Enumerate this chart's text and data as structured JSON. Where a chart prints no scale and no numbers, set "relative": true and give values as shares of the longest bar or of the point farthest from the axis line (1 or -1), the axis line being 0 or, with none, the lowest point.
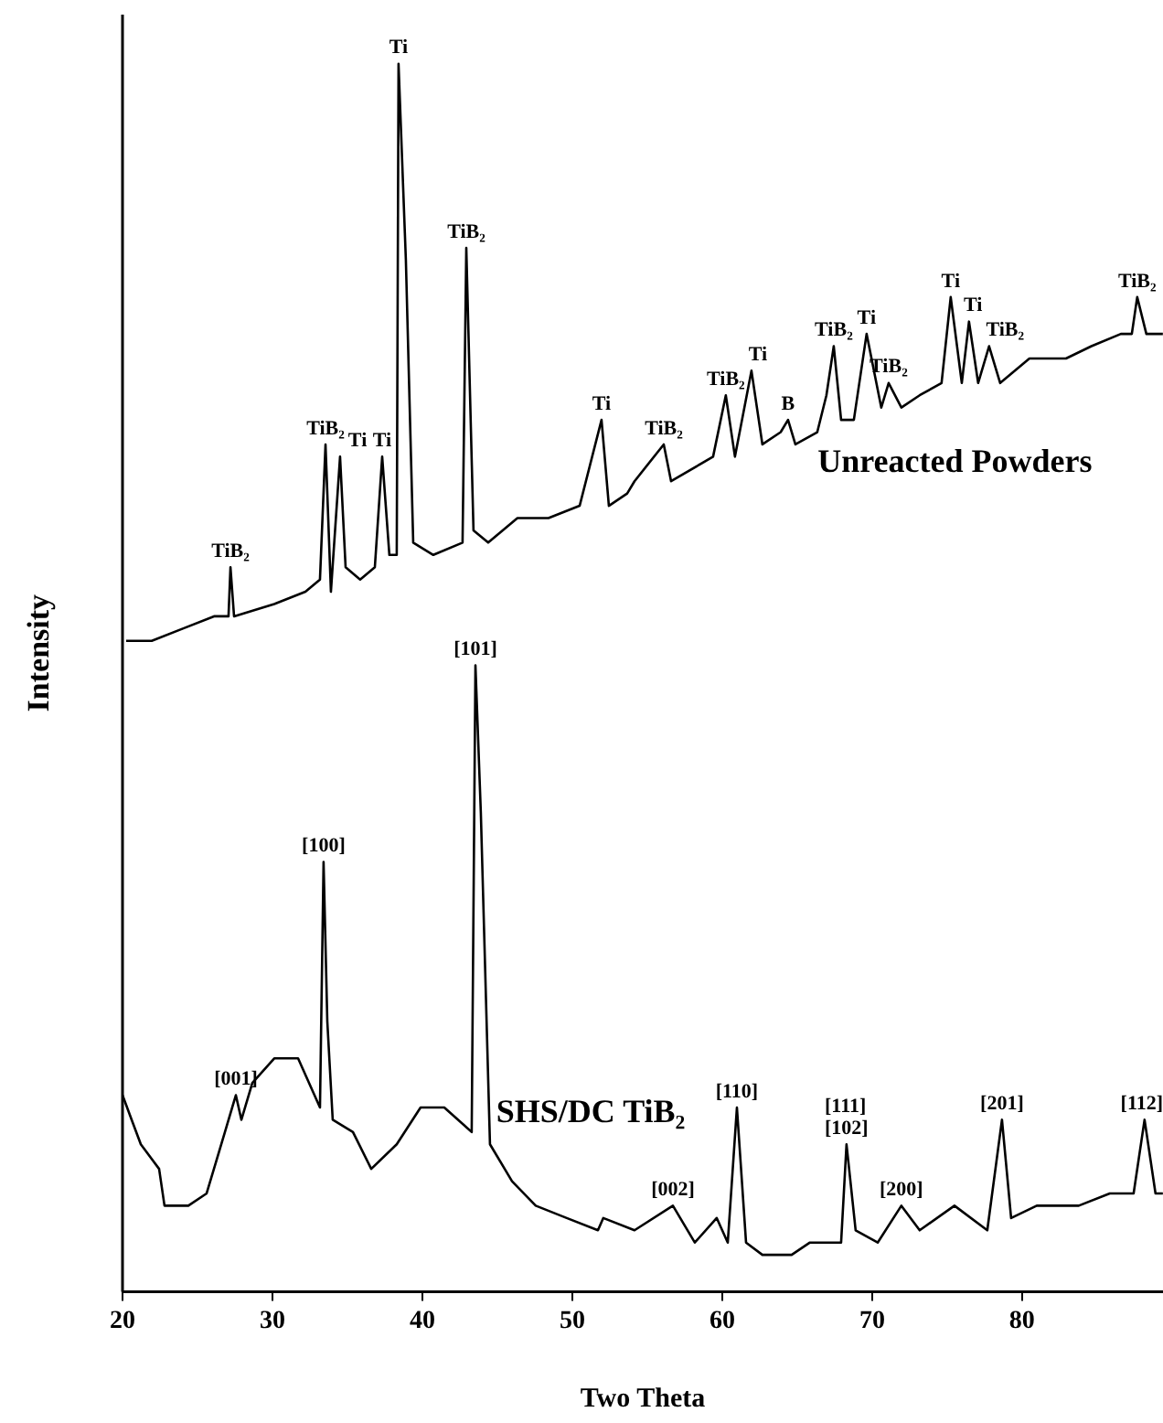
{
  "chart_data": {
    "type": "line",
    "xlabel": "Two Theta",
    "ylabel": "Intensity",
    "relative": true,
    "tick_labels": "x",
    "xlim": [
      20,
      89.4
    ],
    "xticks": [
      20,
      30,
      40,
      50,
      60,
      70,
      80
    ],
    "series": [
      {
        "name": "Unreacted Powders",
        "color": "#000000",
        "x": [
          20.24,
          21.95,
          24.02,
          26.1,
          27.07,
          27.2,
          27.44,
          30.12,
          32.2,
          33.17,
          33.54,
          33.9,
          34.51,
          34.88,
          35.85,
          36.83,
          37.32,
          37.8,
          38.29,
          38.41,
          38.9,
          39.39,
          40.73,
          42.68,
          42.93,
          43.41,
          44.39,
          46.34,
          48.41,
          50.49,
          51.95,
          52.44,
          53.66,
          54.15,
          56.1,
          56.59,
          59.39,
          60.24,
          60.85,
          61.95,
          62.68,
          63.9,
          64.39,
          64.88,
          66.34,
          66.95,
          67.44,
          67.93,
          68.78,
          69.63,
          70.61,
          71.1,
          71.95,
          73.17,
          74.63,
          75.24,
          75.98,
          76.46,
          77.07,
          77.8,
          78.54,
          80.49,
          82.93,
          84.63,
          86.59,
          87.32,
          87.68,
          88.29,
          89.39
        ],
        "values": [
          0.53,
          0.53,
          0.54,
          0.55,
          0.55,
          0.59,
          0.55,
          0.56,
          0.57,
          0.58,
          0.69,
          0.57,
          0.68,
          0.59,
          0.58,
          0.59,
          0.68,
          0.6,
          0.6,
          1.0,
          0.84,
          0.61,
          0.6,
          0.61,
          0.85,
          0.62,
          0.61,
          0.63,
          0.63,
          0.64,
          0.71,
          0.64,
          0.65,
          0.66,
          0.69,
          0.66,
          0.68,
          0.73,
          0.68,
          0.75,
          0.69,
          0.7,
          0.71,
          0.69,
          0.7,
          0.73,
          0.77,
          0.71,
          0.71,
          0.78,
          0.72,
          0.74,
          0.72,
          0.73,
          0.74,
          0.81,
          0.74,
          0.79,
          0.74,
          0.77,
          0.74,
          0.76,
          0.76,
          0.77,
          0.78,
          0.78,
          0.81,
          0.78,
          0.78
        ]
      },
      {
        "name": "SHS/DC TiB₂",
        "color": "#000000",
        "x": [
          20,
          20.61,
          21.22,
          22.44,
          22.8,
          24.39,
          25.61,
          26.83,
          27.56,
          27.93,
          28.66,
          30.12,
          31.71,
          33.17,
          33.41,
          33.66,
          34.02,
          35.37,
          36.59,
          38.29,
          39.88,
          41.46,
          43.29,
          43.54,
          43.9,
          44.51,
          45.98,
          47.56,
          49.63,
          51.71,
          52.07,
          54.15,
          56.71,
          58.17,
          59.63,
          60.37,
          60.98,
          61.59,
          62.68,
          64.63,
          65.85,
          67.93,
          68.29,
          68.9,
          70.37,
          71.95,
          73.17,
          75.49,
          77.68,
          78.66,
          79.27,
          80.98,
          83.78,
          85.85,
          87.44,
          88.17,
          88.9,
          89.39
        ],
        "values": [
          0.16,
          0.14,
          0.12,
          0.1,
          0.07,
          0.07,
          0.08,
          0.13,
          0.16,
          0.14,
          0.17,
          0.19,
          0.19,
          0.15,
          0.35,
          0.22,
          0.14,
          0.13,
          0.1,
          0.12,
          0.15,
          0.15,
          0.13,
          0.51,
          0.39,
          0.12,
          0.09,
          0.07,
          0.06,
          0.05,
          0.06,
          0.05,
          0.07,
          0.04,
          0.06,
          0.04,
          0.15,
          0.04,
          0.03,
          0.03,
          0.04,
          0.04,
          0.12,
          0.05,
          0.04,
          0.07,
          0.05,
          0.07,
          0.05,
          0.14,
          0.06,
          0.07,
          0.07,
          0.08,
          0.08,
          0.14,
          0.08,
          0.08
        ]
      }
    ],
    "annotations": [
      {
        "text": "TiB₂",
        "x": 27.2,
        "y": 0.59
      },
      {
        "text": "TiB₂",
        "x": 33.54,
        "y": 0.69
      },
      {
        "text": "Ti",
        "x": 34.51,
        "y": 0.68
      },
      {
        "text": "Ti",
        "x": 37.32,
        "y": 0.68
      },
      {
        "text": "Ti",
        "x": 38.41,
        "y": 1.0
      },
      {
        "text": "TiB₂",
        "x": 42.93,
        "y": 0.85
      },
      {
        "text": "Ti",
        "x": 51.95,
        "y": 0.71
      },
      {
        "text": "TiB₂",
        "x": 56.1,
        "y": 0.69
      },
      {
        "text": "TiB₂",
        "x": 60.24,
        "y": 0.73
      },
      {
        "text": "Ti",
        "x": 61.95,
        "y": 0.75
      },
      {
        "text": "B",
        "x": 64.39,
        "y": 0.71
      },
      {
        "text": "TiB₂",
        "x": 67.44,
        "y": 0.77
      },
      {
        "text": "Ti",
        "x": 69.63,
        "y": 0.78
      },
      {
        "text": "TiB₂",
        "x": 71.1,
        "y": 0.74
      },
      {
        "text": "Ti",
        "x": 75.24,
        "y": 0.81
      },
      {
        "text": "Ti",
        "x": 76.46,
        "y": 0.79
      },
      {
        "text": "TiB₂",
        "x": 77.8,
        "y": 0.77
      },
      {
        "text": "TiB₂",
        "x": 87.68,
        "y": 0.81
      },
      {
        "text": "[001]",
        "x": 27.56,
        "y": 0.16
      },
      {
        "text": "[100]",
        "x": 33.41,
        "y": 0.35
      },
      {
        "text": "[101]",
        "x": 43.54,
        "y": 0.51
      },
      {
        "text": "[002]",
        "x": 56.71,
        "y": 0.07
      },
      {
        "text": "[110]",
        "x": 60.98,
        "y": 0.15
      },
      {
        "text": "[111]\n[102]",
        "x": 68.29,
        "y": 0.12
      },
      {
        "text": "[200]",
        "x": 71.95,
        "y": 0.07
      },
      {
        "text": "[201]",
        "x": 78.66,
        "y": 0.14
      },
      {
        "text": "[112]",
        "x": 88.17,
        "y": 0.14
      }
    ]
  }
}
